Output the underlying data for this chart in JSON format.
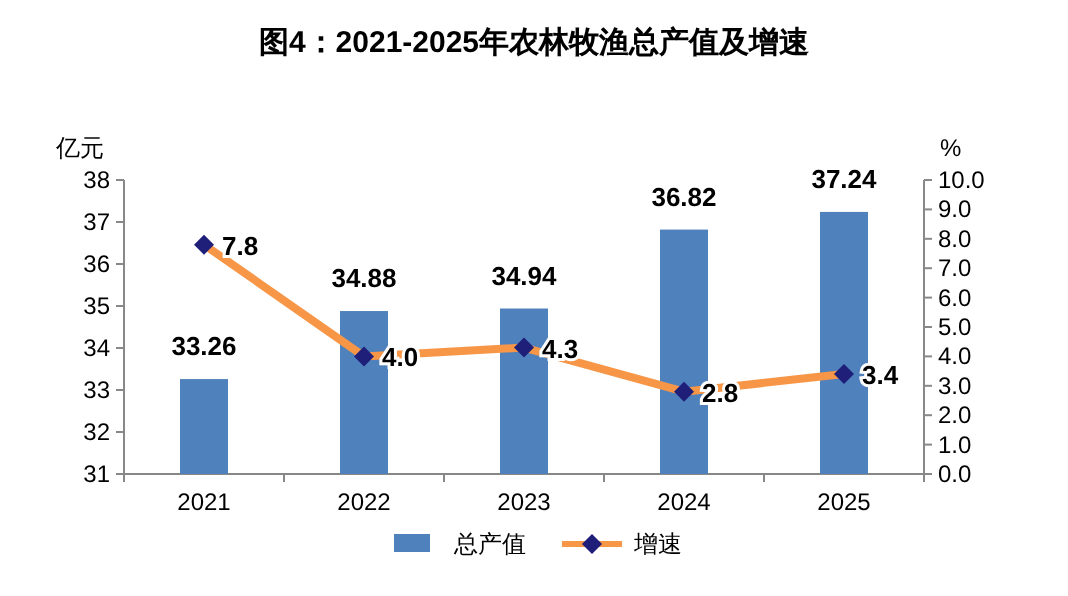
{
  "chart_data": {
    "type": "bar",
    "title": "图4：2021-2025年农林牧渔总产值及增速",
    "ylabel": "亿元",
    "y2label": "%",
    "categories": [
      "2021",
      "2022",
      "2023",
      "2024",
      "2025"
    ],
    "series": [
      {
        "name": "总产值",
        "color": "#4f81bd",
        "values": [
          33.26,
          34.88,
          34.94,
          36.82,
          37.24
        ],
        "value_labels": [
          "33.26",
          "34.88",
          "34.94",
          "36.82",
          "37.24"
        ]
      },
      {
        "name": "增速",
        "type": "line",
        "axis": "y2",
        "color": "#f79646",
        "colors": [
          "#1f1f7a",
          "#1f1f7a",
          "#1f1f7a",
          "#1f1f7a",
          "#1f1f7a"
        ],
        "marker": "diamond",
        "values": [
          7.8,
          4.0,
          4.3,
          2.8,
          3.4
        ],
        "value_labels": [
          "7.8",
          "4.0",
          "4.3",
          "2.8",
          "3.4"
        ]
      }
    ],
    "ylim": [
      31,
      38
    ],
    "yticks": [
      31,
      32,
      33,
      34,
      35,
      36,
      37,
      38
    ],
    "y2lim": [
      0,
      10
    ],
    "y2ticks": [
      {
        "value": 0,
        "label": "0.0"
      },
      {
        "value": 1,
        "label": "1.0"
      },
      {
        "value": 2,
        "label": "2.0"
      },
      {
        "value": 3,
        "label": "3.0"
      },
      {
        "value": 4,
        "label": "4.0"
      },
      {
        "value": 5,
        "label": "5.0"
      },
      {
        "value": 6,
        "label": "6.0"
      },
      {
        "value": 7,
        "label": "7.0"
      },
      {
        "value": 8,
        "label": "8.0"
      },
      {
        "value": 9,
        "label": "9.0"
      },
      {
        "value": 10,
        "label": "10.0"
      }
    ],
    "legend": "bottom",
    "grid": false
  }
}
